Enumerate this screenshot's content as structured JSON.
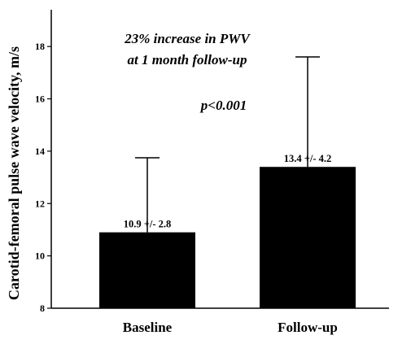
{
  "chart_data": {
    "type": "bar",
    "categories": [
      "Baseline",
      "Follow-up"
    ],
    "values": [
      10.9,
      13.4
    ],
    "error_upper": [
      13.75,
      17.6
    ],
    "data_labels": [
      "10.9 +/- 2.8",
      "13.4 +/- 4.2"
    ],
    "ylabel": "Carotid-femoral pulse wave velocity, m/s",
    "xlabel": "",
    "ylim": [
      8,
      19
    ],
    "yticks": [
      8,
      10,
      12,
      14,
      16,
      18
    ],
    "grid": false,
    "bar_color": "#000000",
    "annotations": {
      "line1": "23% increase in PWV",
      "line2": "at 1 month follow-up",
      "pvalue": "p<0.001"
    }
  }
}
